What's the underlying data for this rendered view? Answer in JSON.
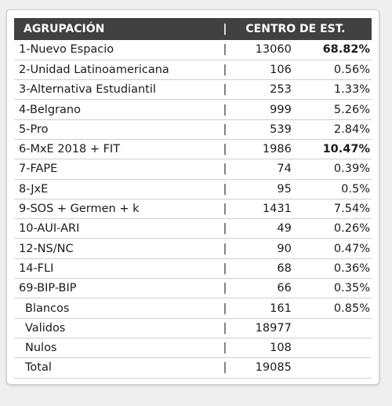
{
  "header": {
    "agrupacion": "AGRUPACIÓN",
    "separator": "|",
    "centro": "CENTRO DE EST."
  },
  "separator": "|",
  "rows": [
    {
      "name": "1-Nuevo Espacio",
      "votes": "13060",
      "pct": "68.82%",
      "bold": true
    },
    {
      "name": "2-Unidad Latinoamericana",
      "votes": "106",
      "pct": "0.56%"
    },
    {
      "name": "3-Alternativa Estudiantil",
      "votes": "253",
      "pct": "1.33%"
    },
    {
      "name": "4-Belgrano",
      "votes": "999",
      "pct": "5.26%"
    },
    {
      "name": "5-Pro",
      "votes": "539",
      "pct": "2.84%"
    },
    {
      "name": "6-MxE 2018 + FIT",
      "votes": "1986",
      "pct": "10.47%",
      "bold": true
    },
    {
      "name": "7-FAPE",
      "votes": "74",
      "pct": "0.39%"
    },
    {
      "name": "8-JxE",
      "votes": "95",
      "pct": "0.5%"
    },
    {
      "name": "9-SOS + Germen + k",
      "votes": "1431",
      "pct": "7.54%"
    },
    {
      "name": "10-AUI-ARI",
      "votes": "49",
      "pct": "0.26%"
    },
    {
      "name": "12-NS/NC",
      "votes": "90",
      "pct": "0.47%"
    },
    {
      "name": "14-FLI",
      "votes": "68",
      "pct": "0.36%"
    },
    {
      "name": "69-BIP-BIP",
      "votes": "66",
      "pct": "0.35%"
    },
    {
      "name": "Blancos",
      "votes": "161",
      "pct": "0.85%",
      "indent": true
    },
    {
      "name": "Validos",
      "votes": "18977",
      "pct": "",
      "indent": true
    },
    {
      "name": "Nulos",
      "votes": "108",
      "pct": "",
      "indent": true
    },
    {
      "name": "Total",
      "votes": "19085",
      "pct": "",
      "indent": true
    }
  ]
}
